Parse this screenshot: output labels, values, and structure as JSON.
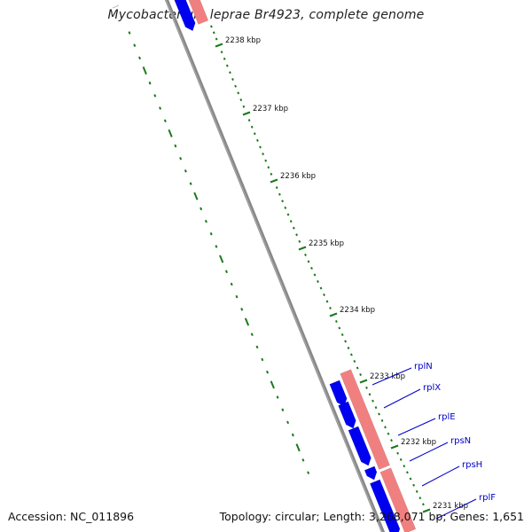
{
  "title": "Mycobacterium leprae Br4923, complete genome",
  "footer": {
    "accession": "Accession: NC_011896",
    "summary": "Topology: circular; Length: 3,268,071 bp; Genes: 1,651"
  },
  "colors": {
    "backbone": "#7a7a7a",
    "tick": "#1b7a1b",
    "forward_gene": "#0000f0",
    "reverse_gene": "#f08080",
    "gene_label": "#0000c8"
  },
  "tick_labels": [
    "2238 kbp",
    "2237 kbp",
    "2236 kbp",
    "2235 kbp",
    "2234 kbp",
    "2233 kbp",
    "2232 kbp",
    "2231 kbp"
  ],
  "gene_labels": [
    "rplN",
    "rplX",
    "rplE",
    "rpsN",
    "rpsH",
    "rplF"
  ]
}
